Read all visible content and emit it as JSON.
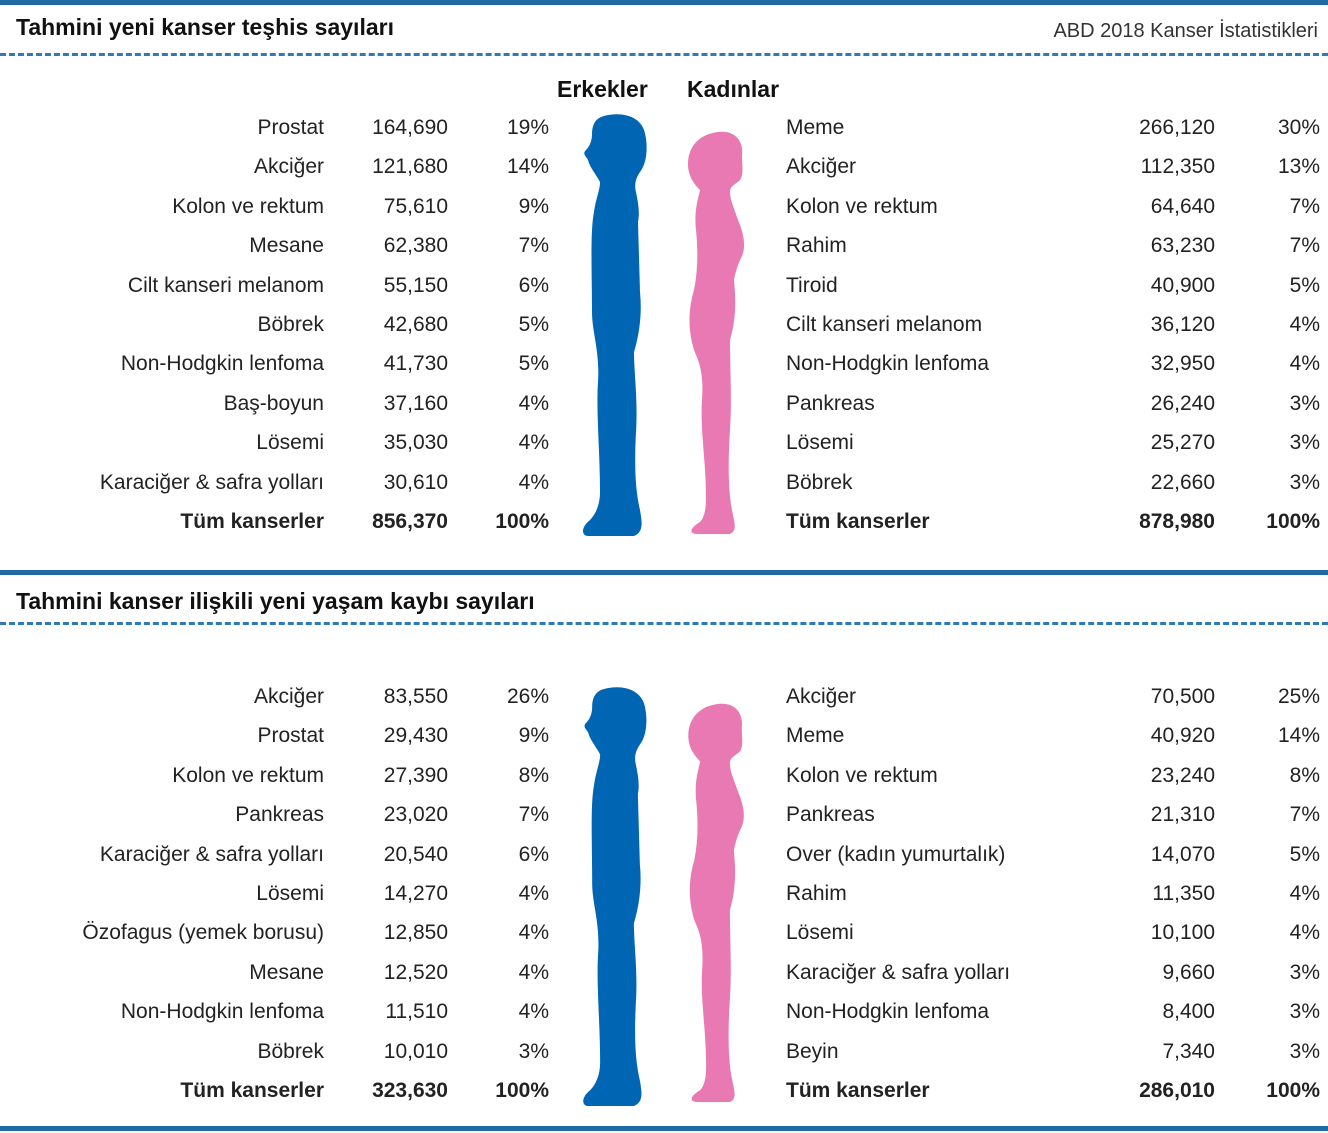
{
  "chart_data": [
    {
      "type": "table",
      "title": "Tahmini yeni kanser teşhis sayıları",
      "subtitle": "ABD 2018 Kanser İstatistikleri",
      "male_header": "Erkekler",
      "female_header": "Kadınlar",
      "male": [
        {
          "name": "Prostat",
          "count": "164,690",
          "pct": "19%"
        },
        {
          "name": "Akciğer",
          "count": "121,680",
          "pct": "14%"
        },
        {
          "name": "Kolon ve rektum",
          "count": "75,610",
          "pct": "9%"
        },
        {
          "name": "Mesane",
          "count": "62,380",
          "pct": "7%"
        },
        {
          "name": "Cilt kanseri melanom",
          "count": "55,150",
          "pct": "6%"
        },
        {
          "name": "Böbrek",
          "count": "42,680",
          "pct": "5%"
        },
        {
          "name": "Non-Hodgkin lenfoma",
          "count": "41,730",
          "pct": "5%"
        },
        {
          "name": "Baş-boyun",
          "count": "37,160",
          "pct": "4%"
        },
        {
          "name": "Lösemi",
          "count": "35,030",
          "pct": "4%"
        },
        {
          "name": "Karaciğer & safra yolları",
          "count": "30,610",
          "pct": "4%"
        }
      ],
      "male_total": {
        "name": "Tüm kanserler",
        "count": "856,370",
        "pct": "100%"
      },
      "female": [
        {
          "name": "Meme",
          "count": "266,120",
          "pct": "30%"
        },
        {
          "name": "Akciğer",
          "count": "112,350",
          "pct": "13%"
        },
        {
          "name": "Kolon ve rektum",
          "count": "64,640",
          "pct": "7%"
        },
        {
          "name": "Rahim",
          "count": "63,230",
          "pct": "7%"
        },
        {
          "name": "Tiroid",
          "count": "40,900",
          "pct": "5%"
        },
        {
          "name": "Cilt kanseri melanom",
          "count": "36,120",
          "pct": "4%"
        },
        {
          "name": "Non-Hodgkin lenfoma",
          "count": "32,950",
          "pct": "4%"
        },
        {
          "name": "Pankreas",
          "count": "26,240",
          "pct": "3%"
        },
        {
          "name": "Lösemi",
          "count": "25,270",
          "pct": "3%"
        },
        {
          "name": "Böbrek",
          "count": "22,660",
          "pct": "3%"
        }
      ],
      "female_total": {
        "name": "Tüm kanserler",
        "count": "878,980",
        "pct": "100%"
      }
    },
    {
      "type": "table",
      "title": "Tahmini kanser ilişkili yeni yaşam kaybı sayıları",
      "male": [
        {
          "name": "Akciğer",
          "count": "83,550",
          "pct": "26%"
        },
        {
          "name": "Prostat",
          "count": "29,430",
          "pct": "9%"
        },
        {
          "name": "Kolon ve rektum",
          "count": "27,390",
          "pct": "8%"
        },
        {
          "name": "Pankreas",
          "count": "23,020",
          "pct": "7%"
        },
        {
          "name": "Karaciğer & safra yolları",
          "count": "20,540",
          "pct": "6%"
        },
        {
          "name": "Lösemi",
          "count": "14,270",
          "pct": "4%"
        },
        {
          "name": "Özofagus (yemek borusu)",
          "count": "12,850",
          "pct": "4%"
        },
        {
          "name": "Mesane",
          "count": "12,520",
          "pct": "4%"
        },
        {
          "name": "Non-Hodgkin lenfoma",
          "count": "11,510",
          "pct": "4%"
        },
        {
          "name": "Böbrek",
          "count": "10,010",
          "pct": "3%"
        }
      ],
      "male_total": {
        "name": "Tüm kanserler",
        "count": "323,630",
        "pct": "100%"
      },
      "female": [
        {
          "name": "Akciğer",
          "count": "70,500",
          "pct": "25%"
        },
        {
          "name": "Meme",
          "count": "40,920",
          "pct": "14%"
        },
        {
          "name": "Kolon ve rektum",
          "count": "23,240",
          "pct": "8%"
        },
        {
          "name": "Pankreas",
          "count": "21,310",
          "pct": "7%"
        },
        {
          "name": "Over (kadın yumurtalık)",
          "count": "14,070",
          "pct": "5%"
        },
        {
          "name": "Rahim",
          "count": "11,350",
          "pct": "4%"
        },
        {
          "name": "Lösemi",
          "count": "10,100",
          "pct": "4%"
        },
        {
          "name": "Karaciğer & safra yolları",
          "count": "9,660",
          "pct": "3%"
        },
        {
          "name": "Non-Hodgkin lenfoma",
          "count": "8,400",
          "pct": "3%"
        },
        {
          "name": "Beyin",
          "count": "7,340",
          "pct": "3%"
        }
      ],
      "female_total": {
        "name": "Tüm kanserler",
        "count": "286,010",
        "pct": "100%"
      }
    }
  ],
  "colors": {
    "male": "#0066b3",
    "female": "#e879b3",
    "rule": "#1f6aa5"
  },
  "icons": {
    "male": "male-silhouette-icon",
    "female": "female-silhouette-icon"
  }
}
